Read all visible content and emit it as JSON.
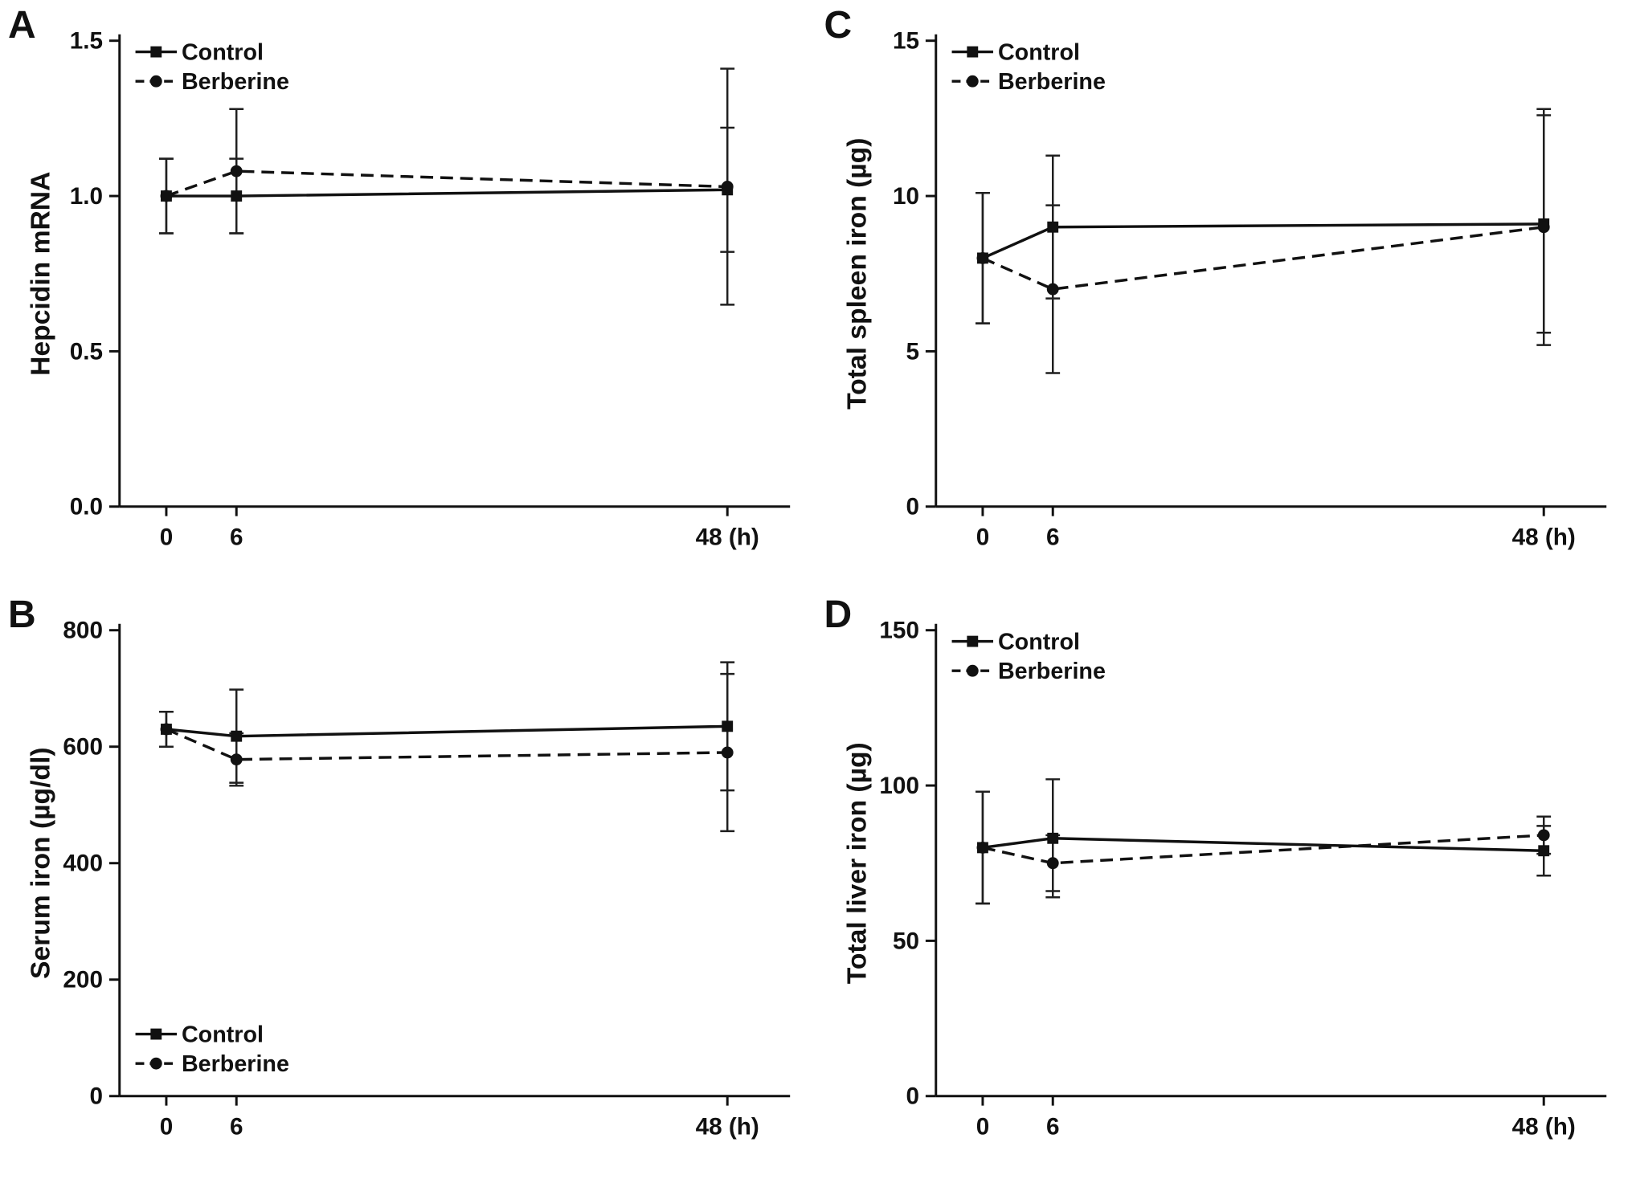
{
  "figure": {
    "background": "#ffffff",
    "ink": "#111111",
    "error_bar_color": "#1f1f1f"
  },
  "chart_data": [
    {
      "type": "line",
      "panel": "A",
      "ylabel": "Hepcidin mRNA",
      "xlabel": "",
      "x": [
        0,
        6,
        48
      ],
      "xtick_labels": [
        "0",
        "6",
        "48 (h)"
      ],
      "xlim": [
        -4,
        52
      ],
      "ylim": [
        0,
        1.5
      ],
      "yticks": [
        0,
        0.5,
        1.0,
        1.5
      ],
      "ytick_labels": [
        "0.0",
        "0.5",
        "1.0",
        "1.5"
      ],
      "grid": false,
      "legend_pos": "top-left",
      "series": [
        {
          "name": "Control",
          "line": "solid",
          "marker": "square",
          "values": [
            1.0,
            1.0,
            1.02
          ],
          "errors": [
            0.12,
            0.12,
            0.2
          ]
        },
        {
          "name": "Berberine",
          "line": "dashed",
          "marker": "circle",
          "values": [
            1.0,
            1.08,
            1.03
          ],
          "errors": [
            0.12,
            0.2,
            0.38
          ]
        }
      ]
    },
    {
      "type": "line",
      "panel": "B",
      "ylabel": "Serum iron (µg/dl)",
      "xlabel": "",
      "x": [
        0,
        6,
        48
      ],
      "xtick_labels": [
        "0",
        "6",
        "48 (h)"
      ],
      "xlim": [
        -4,
        52
      ],
      "ylim": [
        0,
        800
      ],
      "yticks": [
        0,
        200,
        400,
        600,
        800
      ],
      "ytick_labels": [
        "0",
        "200",
        "400",
        "600",
        "800"
      ],
      "grid": false,
      "legend_pos": "bottom-left",
      "series": [
        {
          "name": "Control",
          "line": "solid",
          "marker": "square",
          "values": [
            630,
            618,
            635
          ],
          "errors": [
            30,
            80,
            110
          ]
        },
        {
          "name": "Berberine",
          "line": "dashed",
          "marker": "circle",
          "values": [
            630,
            578,
            590
          ],
          "errors": [
            30,
            45,
            135
          ]
        }
      ]
    },
    {
      "type": "line",
      "panel": "C",
      "ylabel": "Total spleen iron (µg)",
      "xlabel": "",
      "x": [
        0,
        6,
        48
      ],
      "xtick_labels": [
        "0",
        "6",
        "48 (h)"
      ],
      "xlim": [
        -4,
        52
      ],
      "ylim": [
        0,
        15
      ],
      "yticks": [
        0,
        5,
        10,
        15
      ],
      "ytick_labels": [
        "0",
        "5",
        "10",
        "15"
      ],
      "grid": false,
      "legend_pos": "top-left",
      "series": [
        {
          "name": "Control",
          "line": "solid",
          "marker": "square",
          "values": [
            8.0,
            9.0,
            9.1
          ],
          "errors": [
            2.1,
            2.3,
            3.5
          ]
        },
        {
          "name": "Berberine",
          "line": "dashed",
          "marker": "circle",
          "values": [
            8.0,
            7.0,
            9.0
          ],
          "errors": [
            2.1,
            2.7,
            3.8
          ]
        }
      ]
    },
    {
      "type": "line",
      "panel": "D",
      "ylabel": "Total liver iron (µg)",
      "xlabel": "",
      "x": [
        0,
        6,
        48
      ],
      "xtick_labels": [
        "0",
        "6",
        "48 (h)"
      ],
      "xlim": [
        -4,
        52
      ],
      "ylim": [
        0,
        150
      ],
      "yticks": [
        0,
        50,
        100,
        150
      ],
      "ytick_labels": [
        "0",
        "50",
        "100",
        "150"
      ],
      "grid": false,
      "legend_pos": "top-left",
      "series": [
        {
          "name": "Control",
          "line": "solid",
          "marker": "square",
          "values": [
            80,
            83,
            79
          ],
          "errors": [
            18,
            19,
            8
          ]
        },
        {
          "name": "Berberine",
          "line": "dashed",
          "marker": "circle",
          "values": [
            80,
            75,
            84
          ],
          "errors": [
            18,
            9,
            6
          ]
        }
      ]
    }
  ]
}
